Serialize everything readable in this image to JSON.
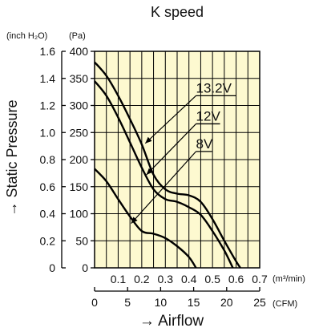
{
  "chart_data": {
    "type": "line",
    "title": "K speed",
    "ylabel": "→ Static Pressure",
    "xlabel": "→ Airflow",
    "y_units_inch": "(inch H₂O)",
    "y_units_pa": "(Pa)",
    "x_units_m3": "(m³/min)",
    "x_units_cfm": "(CFM)",
    "ylim_pa": [
      0,
      400
    ],
    "ylim_inch": [
      0,
      1.6
    ],
    "xlim_m3": [
      0,
      0.7
    ],
    "xlim_cfm": [
      0,
      25
    ],
    "yticks_pa": [
      "0",
      "50",
      "100",
      "150",
      "200",
      "250",
      "300",
      "350",
      "400"
    ],
    "yticks_inch": [
      "0",
      "0.2",
      "0.4",
      "0.6",
      "0.8",
      "1.0",
      "1.2",
      "1.4",
      "1.6"
    ],
    "xticks_m3": [
      "0.1",
      "0.2",
      "0.3",
      "0.4",
      "0.5",
      "0.6",
      "0.7"
    ],
    "xticks_cfm": [
      "0",
      "5",
      "10",
      "15",
      "20",
      "25"
    ],
    "grid": true,
    "background_color": "#fdf9d0",
    "line_color": "#000000",
    "series": [
      {
        "name": "13.2V",
        "label_at": [
          0.43,
          318
        ],
        "arrow_to": [
          0.215,
          230
        ],
        "points": [
          [
            0,
            380
          ],
          [
            0.05,
            355
          ],
          [
            0.1,
            318
          ],
          [
            0.15,
            275
          ],
          [
            0.2,
            228
          ],
          [
            0.25,
            172
          ],
          [
            0.3,
            145
          ],
          [
            0.35,
            137
          ],
          [
            0.4,
            134
          ],
          [
            0.45,
            122
          ],
          [
            0.5,
            90
          ],
          [
            0.55,
            50
          ],
          [
            0.6,
            12
          ],
          [
            0.618,
            0
          ]
        ]
      },
      {
        "name": "12V",
        "label_at": [
          0.43,
          266
        ],
        "arrow_to": [
          0.22,
          172
        ],
        "points": [
          [
            0,
            345
          ],
          [
            0.05,
            318
          ],
          [
            0.1,
            278
          ],
          [
            0.15,
            232
          ],
          [
            0.2,
            185
          ],
          [
            0.25,
            145
          ],
          [
            0.3,
            127
          ],
          [
            0.35,
            122
          ],
          [
            0.4,
            112
          ],
          [
            0.45,
            98
          ],
          [
            0.5,
            68
          ],
          [
            0.55,
            32
          ],
          [
            0.586,
            0
          ]
        ]
      },
      {
        "name": "8V",
        "label_at": [
          0.43,
          215
        ],
        "arrow_to": [
          0.155,
          82
        ],
        "points": [
          [
            0,
            183
          ],
          [
            0.05,
            160
          ],
          [
            0.1,
            127
          ],
          [
            0.15,
            95
          ],
          [
            0.2,
            68
          ],
          [
            0.25,
            63
          ],
          [
            0.3,
            55
          ],
          [
            0.35,
            40
          ],
          [
            0.4,
            20
          ],
          [
            0.43,
            0
          ]
        ]
      }
    ]
  }
}
